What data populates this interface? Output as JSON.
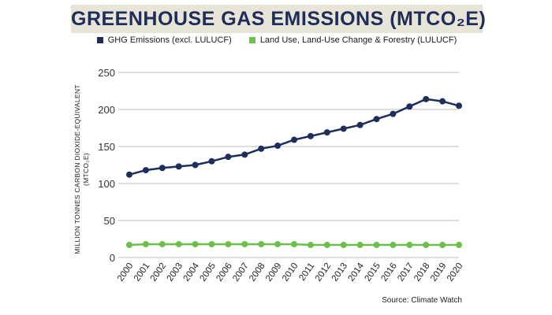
{
  "title": "GREENHOUSE GAS EMISSIONS (MTCO₂E)",
  "source": "Source: Climate Watch",
  "chart_data": {
    "type": "line",
    "title": "GREENHOUSE GAS EMISSIONS (MTCO₂E)",
    "xlabel": "",
    "ylabel": "MILLION TONNES CARBON DIOXIDE-EQUIVALENT",
    "ylabel_unit": "(MTCO₂E)",
    "x": [
      "2000",
      "2001",
      "2002",
      "2003",
      "2004",
      "2005",
      "2006",
      "2007",
      "2008",
      "2009",
      "2010",
      "2011",
      "2012",
      "2013",
      "2014",
      "2015",
      "2016",
      "2017",
      "2018",
      "2019",
      "2020"
    ],
    "ylim": [
      0,
      250
    ],
    "yticks": [
      "0",
      "50",
      "100",
      "150",
      "200",
      "250"
    ],
    "grid": "horizontal",
    "legend_position": "top",
    "series": [
      {
        "name": "GHG Emissions (excl. LULUCF)",
        "color": "#1d2e5b",
        "values": [
          112,
          118,
          121,
          123,
          125,
          130,
          136,
          139,
          147,
          151,
          159,
          164,
          169,
          174,
          179,
          187,
          194,
          204,
          214,
          211,
          205
        ]
      },
      {
        "name": "Land Use, Land-Use Change & Forestry (LULUCF)",
        "color": "#6bbf4a",
        "values": [
          17,
          18,
          18,
          18,
          18,
          18,
          18,
          18,
          18,
          18,
          18,
          17,
          17,
          17,
          17,
          17,
          17,
          17,
          17,
          17,
          17
        ]
      }
    ]
  }
}
